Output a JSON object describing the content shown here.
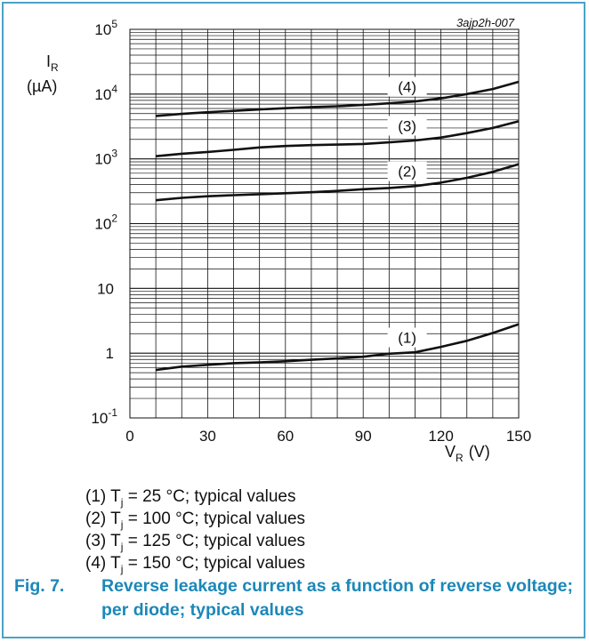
{
  "chart_data": {
    "type": "line",
    "code": "3ajp2h-007",
    "y_scale": "log",
    "ylim": [
      0.1,
      100000
    ],
    "xlim": [
      0,
      150
    ],
    "x_ticks": [
      "0",
      "30",
      "60",
      "90",
      "120",
      "150"
    ],
    "y_ticks": [
      {
        "base": "10",
        "exp": "-1"
      },
      {
        "base": "1",
        "exp": ""
      },
      {
        "base": "10",
        "exp": ""
      },
      {
        "base": "10",
        "exp": "2"
      },
      {
        "base": "10",
        "exp": "3"
      },
      {
        "base": "10",
        "exp": "4"
      },
      {
        "base": "10",
        "exp": "5"
      }
    ],
    "ylabel": {
      "main": "I",
      "sub": "R",
      "unit": "(µA)"
    },
    "xlabel": {
      "main": "V",
      "sub": "R",
      "unit": "(V)"
    },
    "grid": true,
    "series": [
      {
        "name": "(1)",
        "x": [
          10,
          20,
          30,
          40,
          50,
          60,
          70,
          80,
          90,
          100,
          110,
          120,
          130,
          140,
          150
        ],
        "values": [
          0.55,
          0.62,
          0.66,
          0.7,
          0.72,
          0.75,
          0.79,
          0.83,
          0.88,
          0.98,
          1.03,
          1.25,
          1.55,
          2.05,
          2.8
        ]
      },
      {
        "name": "(2)",
        "x": [
          10,
          20,
          30,
          40,
          50,
          60,
          70,
          80,
          90,
          100,
          110,
          120,
          130,
          140,
          150
        ],
        "values": [
          230,
          250,
          265,
          275,
          285,
          295,
          305,
          320,
          340,
          355,
          380,
          430,
          510,
          630,
          830
        ]
      },
      {
        "name": "(3)",
        "x": [
          10,
          20,
          30,
          40,
          50,
          60,
          70,
          80,
          90,
          100,
          110,
          120,
          130,
          140,
          150
        ],
        "values": [
          1100,
          1200,
          1280,
          1380,
          1500,
          1580,
          1630,
          1660,
          1700,
          1800,
          1920,
          2130,
          2500,
          3000,
          3800
        ]
      },
      {
        "name": "(4)",
        "x": [
          10,
          20,
          30,
          40,
          50,
          60,
          70,
          80,
          90,
          100,
          110,
          120,
          130,
          140,
          150
        ],
        "values": [
          4600,
          4950,
          5250,
          5500,
          5800,
          6050,
          6300,
          6500,
          6800,
          7200,
          7700,
          8600,
          10000,
          12000,
          15500
        ]
      }
    ]
  },
  "legend": [
    {
      "num": "(1)",
      "sym": "T",
      "sub": "j",
      "rest": "= 25 °C; typical values"
    },
    {
      "num": "(2)",
      "sym": "T",
      "sub": "j",
      "rest": "= 100 °C; typical values"
    },
    {
      "num": "(3)",
      "sym": "T",
      "sub": "j",
      "rest": "= 125 °C; typical values"
    },
    {
      "num": "(4)",
      "sym": "T",
      "sub": "j",
      "rest": "= 150 °C; typical values"
    }
  ],
  "caption": {
    "number": "Fig. 7.",
    "text": "Reverse leakage current as a function of reverse voltage; per diode; typical values"
  },
  "colors": {
    "frame": "#4aa3c8",
    "caption": "#1b88b8",
    "line": "#111111",
    "grid": "#111111"
  }
}
